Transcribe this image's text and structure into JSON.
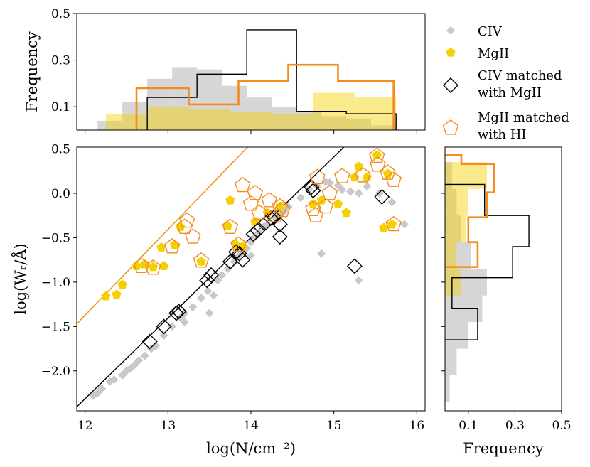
{
  "chart_data": {
    "type": "scatter",
    "title": "",
    "colors": {
      "civ_points": "#c8c8c8",
      "mgii_points": "#f5d000",
      "mgii_edge": "#f08c00",
      "civ_matched_edge": "#000000",
      "mgii_hi_edge": "#f58a1f",
      "hist_mgii_fill": "#f5d000",
      "hist_civ_fill": "#cccccc"
    },
    "main": {
      "xlabel": "log(N/cm⁻²)",
      "ylabel": "log(Wᵣ/Å)",
      "xlim": [
        11.9,
        16.1
      ],
      "ylim": [
        -2.45,
        0.52
      ],
      "xticks": [
        12,
        13,
        14,
        15,
        16
      ],
      "xtick_labels": [
        "12",
        "13",
        "14",
        "15",
        "16"
      ],
      "yticks": [
        -2.0,
        -1.5,
        -1.0,
        -0.5,
        0.0,
        0.5
      ],
      "ytick_labels": [
        "−2.0",
        "−1.5",
        "−1.0",
        "−0.5",
        "0.0",
        "0.5"
      ],
      "lines": [
        {
          "name": "CIV linear curve of growth",
          "color": "#000000",
          "points": [
            [
              11.85,
              -2.45
            ],
            [
              15.12,
              0.52
            ]
          ]
        },
        {
          "name": "MgII linear curve of growth",
          "color": "#f08c00",
          "points": [
            [
              11.9,
              -1.47
            ],
            [
              13.96,
              0.52
            ]
          ]
        }
      ],
      "series": [
        {
          "name": "CIV",
          "marker": "diamond",
          "points": [
            [
              12.1,
              -2.28
            ],
            [
              12.15,
              -2.25
            ],
            [
              12.2,
              -2.2
            ],
            [
              12.3,
              -2.12
            ],
            [
              12.35,
              -2.1
            ],
            [
              12.45,
              -2.05
            ],
            [
              12.5,
              -2.0
            ],
            [
              12.55,
              -1.97
            ],
            [
              12.6,
              -1.93
            ],
            [
              12.65,
              -1.88
            ],
            [
              12.72,
              -1.83
            ],
            [
              12.8,
              -1.75
            ],
            [
              12.85,
              -1.72
            ],
            [
              12.95,
              -1.6
            ],
            [
              13.05,
              -1.5
            ],
            [
              13.15,
              -1.4
            ],
            [
              13.2,
              -1.35
            ],
            [
              13.3,
              -1.28
            ],
            [
              13.4,
              -1.18
            ],
            [
              13.48,
              -1.1
            ],
            [
              13.55,
              -1.15
            ],
            [
              13.6,
              -0.98
            ],
            [
              13.65,
              -0.92
            ],
            [
              13.72,
              -0.85
            ],
            [
              13.8,
              -0.77
            ],
            [
              13.85,
              -0.71
            ],
            [
              13.9,
              -0.66
            ],
            [
              13.95,
              -0.62
            ],
            [
              14.0,
              -0.55
            ],
            [
              14.05,
              -0.49
            ],
            [
              14.1,
              -0.44
            ],
            [
              14.15,
              -0.38
            ],
            [
              14.2,
              -0.35
            ],
            [
              14.3,
              -0.28
            ],
            [
              14.35,
              -0.25
            ],
            [
              14.4,
              -0.2
            ],
            [
              14.45,
              -0.15
            ],
            [
              14.6,
              -0.05
            ],
            [
              14.7,
              0.05
            ],
            [
              14.8,
              0.08
            ],
            [
              14.9,
              0.13
            ],
            [
              14.95,
              0.12
            ],
            [
              15.05,
              0.09
            ],
            [
              15.1,
              0.04
            ],
            [
              15.2,
              0.02
            ],
            [
              15.3,
              0.0
            ],
            [
              15.4,
              0.08
            ],
            [
              15.55,
              0.0
            ],
            [
              15.7,
              -0.1
            ],
            [
              15.85,
              -0.35
            ],
            [
              14.85,
              -0.68
            ],
            [
              15.3,
              -0.98
            ],
            [
              13.5,
              -1.35
            ],
            [
              14.0,
              -0.7
            ],
            [
              13.2,
              -1.45
            ]
          ]
        },
        {
          "name": "MgII",
          "marker": "pentagon",
          "points": [
            [
              12.25,
              -1.16
            ],
            [
              12.38,
              -1.14
            ],
            [
              12.45,
              -1.03
            ],
            [
              12.62,
              -0.82
            ],
            [
              12.72,
              -0.8
            ],
            [
              12.82,
              -0.83
            ],
            [
              12.95,
              -0.82
            ],
            [
              12.92,
              -0.61
            ],
            [
              13.08,
              -0.58
            ],
            [
              13.15,
              -0.38
            ],
            [
              13.4,
              -0.77
            ],
            [
              13.75,
              -0.08
            ],
            [
              13.72,
              -0.37
            ],
            [
              13.82,
              -0.58
            ],
            [
              13.9,
              -0.6
            ],
            [
              14.05,
              -0.32
            ],
            [
              14.2,
              -0.22
            ],
            [
              14.35,
              -0.15
            ],
            [
              14.75,
              -0.12
            ],
            [
              14.85,
              -0.08
            ],
            [
              15.05,
              -0.12
            ],
            [
              15.15,
              -0.22
            ],
            [
              15.25,
              0.18
            ],
            [
              15.3,
              0.3
            ],
            [
              15.4,
              0.18
            ],
            [
              15.52,
              0.43
            ],
            [
              15.6,
              -0.39
            ],
            [
              15.65,
              0.22
            ],
            [
              15.7,
              -0.35
            ]
          ]
        },
        {
          "name": "CIV matched with MgII",
          "marker": "diamond-open",
          "points": [
            [
              12.78,
              -1.67
            ],
            [
              12.95,
              -1.5
            ],
            [
              13.1,
              -1.35
            ],
            [
              13.13,
              -1.33
            ],
            [
              13.47,
              -0.98
            ],
            [
              13.52,
              -0.92
            ],
            [
              13.75,
              -0.77
            ],
            [
              13.82,
              -0.66
            ],
            [
              13.86,
              -0.68
            ],
            [
              13.9,
              -0.75
            ],
            [
              14.03,
              -0.46
            ],
            [
              14.08,
              -0.42
            ],
            [
              14.18,
              -0.33
            ],
            [
              14.24,
              -0.28
            ],
            [
              14.28,
              -0.27
            ],
            [
              14.35,
              -0.35
            ],
            [
              14.35,
              -0.49
            ],
            [
              14.73,
              0.07
            ],
            [
              14.75,
              0.03
            ],
            [
              15.25,
              -0.82
            ],
            [
              15.58,
              -0.04
            ]
          ]
        },
        {
          "name": "MgII matched with HI",
          "marker": "pentagon-open",
          "points": [
            [
              12.68,
              -0.82
            ],
            [
              12.82,
              -0.84
            ],
            [
              13.05,
              -0.6
            ],
            [
              13.2,
              -0.38
            ],
            [
              13.23,
              -0.31
            ],
            [
              13.3,
              -0.49
            ],
            [
              13.4,
              -0.76
            ],
            [
              13.75,
              -0.38
            ],
            [
              13.85,
              -0.58
            ],
            [
              13.9,
              0.09
            ],
            [
              14.0,
              -0.12
            ],
            [
              14.05,
              0.0
            ],
            [
              14.1,
              -0.22
            ],
            [
              14.22,
              -0.08
            ],
            [
              14.3,
              -0.25
            ],
            [
              14.35,
              -0.15
            ],
            [
              14.38,
              -0.19
            ],
            [
              14.75,
              -0.18
            ],
            [
              14.78,
              -0.25
            ],
            [
              14.8,
              0.18
            ],
            [
              14.9,
              -0.15
            ],
            [
              14.95,
              0.0
            ],
            [
              15.1,
              0.19
            ],
            [
              15.35,
              0.2
            ],
            [
              15.52,
              0.42
            ],
            [
              15.53,
              0.32
            ],
            [
              15.65,
              0.23
            ],
            [
              15.72,
              0.15
            ],
            [
              15.72,
              -0.35
            ]
          ]
        }
      ]
    },
    "top_hist": {
      "ylabel": "Frequency",
      "ylim": [
        0.0,
        0.5
      ],
      "yticks": [
        0.1,
        0.3,
        0.5
      ],
      "ytick_labels": [
        "0.1",
        "0.3",
        "0.5"
      ],
      "civ_fill_edges": [
        12.15,
        12.45,
        12.75,
        13.05,
        13.35,
        13.65,
        13.95,
        14.25,
        14.55,
        14.85,
        15.15,
        15.45,
        15.75
      ],
      "civ_fill_heights": [
        0.04,
        0.12,
        0.22,
        0.27,
        0.26,
        0.19,
        0.14,
        0.1,
        0.08,
        0.06,
        0.05,
        0.02
      ],
      "mgii_fill_edges": [
        12.25,
        12.75,
        13.25,
        13.75,
        14.25,
        14.75,
        15.25,
        15.75
      ],
      "mgii_fill_heights": [
        0.07,
        0.1,
        0.09,
        0.08,
        0.07,
        0.16,
        0.14
      ],
      "civ_matched_edges": [
        12.75,
        13.35,
        13.95,
        14.55,
        15.15,
        15.75
      ],
      "civ_matched_heights": [
        0.14,
        0.24,
        0.43,
        0.08,
        0.07
      ],
      "mgii_hi_edges": [
        12.62,
        13.25,
        13.85,
        14.45,
        15.05,
        15.72
      ],
      "mgii_hi_heights": [
        0.18,
        0.11,
        0.21,
        0.28,
        0.21
      ]
    },
    "right_hist": {
      "xlabel": "Frequency",
      "xlim": [
        0.0,
        0.5
      ],
      "xticks": [
        0.1,
        0.3,
        0.5
      ],
      "xtick_labels": [
        "0.1",
        "0.3",
        "0.5"
      ],
      "civ_fill_edges": [
        -2.35,
        -2.05,
        -1.75,
        -1.45,
        -1.15,
        -0.85,
        -0.55,
        -0.25,
        0.05,
        0.35
      ],
      "civ_fill_heights": [
        0.02,
        0.05,
        0.1,
        0.16,
        0.18,
        0.11,
        0.07,
        0.05,
        0.03
      ],
      "mgii_fill_edges": [
        -1.15,
        -0.85,
        -0.55,
        -0.25,
        0.05,
        0.35
      ],
      "mgii_fill_heights": [
        0.07,
        0.05,
        0.09,
        0.1,
        0.18
      ],
      "civ_matched_edges": [
        -1.65,
        -1.3,
        -0.95,
        -0.6,
        -0.25,
        0.1
      ],
      "civ_matched_heights": [
        0.14,
        0.03,
        0.29,
        0.36,
        0.17
      ],
      "mgii_hi_edges": [
        -0.83,
        -0.55,
        -0.27,
        0.01,
        0.33,
        0.43
      ],
      "mgii_hi_heights": [
        0.14,
        0.1,
        0.18,
        0.21,
        0.07
      ]
    },
    "legend": {
      "position": "top-right",
      "entries": [
        {
          "label": "CIV",
          "marker": "diamond"
        },
        {
          "label": "MgII",
          "marker": "pentagon"
        },
        {
          "label": "CIV matched\nwith MgII",
          "marker": "diamond-open"
        },
        {
          "label": "MgII matched\nwith HI",
          "marker": "pentagon-open"
        }
      ]
    }
  }
}
